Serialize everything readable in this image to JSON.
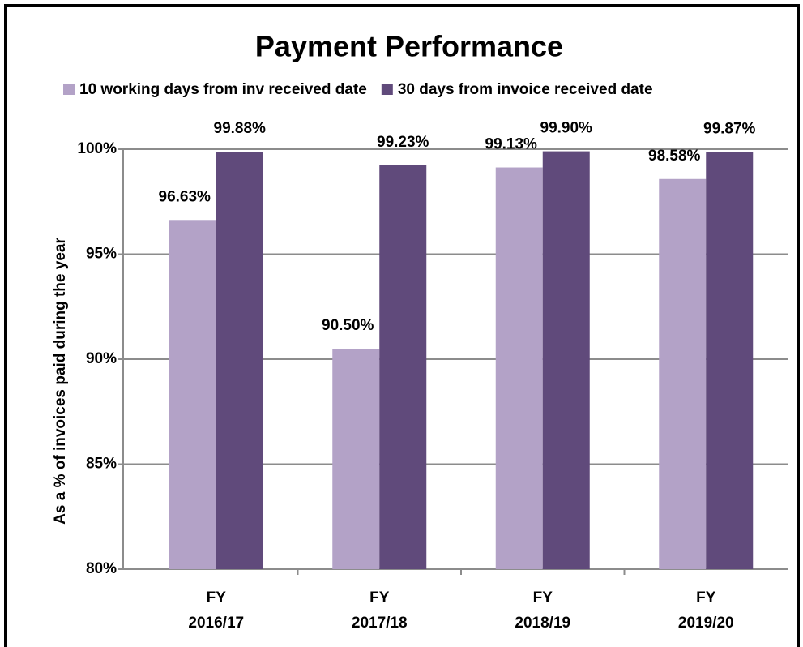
{
  "chart_data": {
    "type": "bar",
    "title": "Payment Performance",
    "y_label": "As a % of invoices paid during the year",
    "categories": [
      "FY 2016/17",
      "FY 2017/18",
      "FY 2018/19",
      "FY 2019/20"
    ],
    "series": [
      {
        "name": "10 working days from inv received date",
        "color": "#b3a2c7",
        "values": [
          96.63,
          90.5,
          99.13,
          98.58
        ],
        "value_labels": [
          "96.63%",
          "90.50%",
          "99.13%",
          "98.58%"
        ]
      },
      {
        "name": "30 days from invoice received date",
        "color": "#604a7b",
        "values": [
          99.88,
          99.23,
          99.9,
          99.87
        ],
        "value_labels": [
          "99.88%",
          "99.23%",
          "99.90%",
          "99.87%"
        ]
      }
    ],
    "ylim": [
      80,
      100
    ],
    "yticks": [
      {
        "value": 80,
        "label": "80%"
      },
      {
        "value": 85,
        "label": "85%"
      },
      {
        "value": 90,
        "label": "90%"
      },
      {
        "value": 95,
        "label": "95%"
      },
      {
        "value": 100,
        "label": "100%"
      }
    ],
    "grid": true
  }
}
